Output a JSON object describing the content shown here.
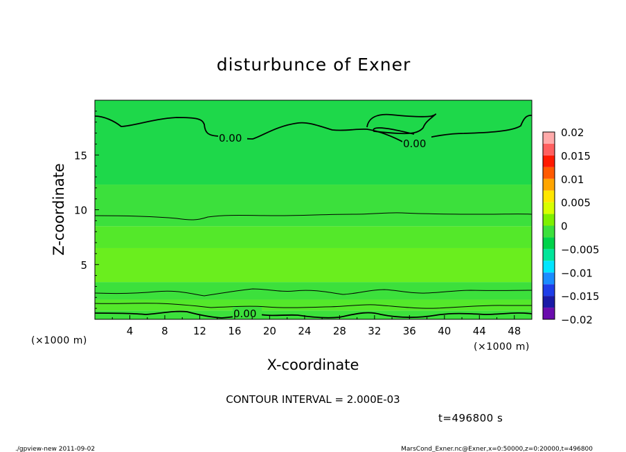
{
  "chart_data": {
    "type": "heatmap",
    "title": "disturbunce of Exner",
    "xlabel": "X-coordinate",
    "ylabel": "Z-coordinate",
    "x_unit": "(×1000 m)",
    "y_unit": "(×1000 m)",
    "xlim": [
      0,
      50
    ],
    "ylim": [
      0,
      20
    ],
    "x_ticks": [
      4,
      8,
      12,
      16,
      20,
      24,
      28,
      32,
      36,
      40,
      44,
      48
    ],
    "y_ticks": [
      5,
      10,
      15
    ],
    "colorbar": {
      "levels": [
        -0.02,
        -0.015,
        -0.01,
        -0.005,
        0,
        0.005,
        0.01,
        0.015,
        0.02
      ],
      "tick_labels": [
        "0.02",
        "0.015",
        "0.01",
        "0.005",
        "0",
        "−0.005",
        "−0.01",
        "−0.015",
        "−0.02"
      ],
      "colors": [
        "#6a0dad",
        "#1a1aa6",
        "#1e3ee8",
        "#1a8cff",
        "#00e5ff",
        "#00e59a",
        "#00d24a",
        "#3ce03c",
        "#7ef000",
        "#d8ff00",
        "#ffe600",
        "#ffa500",
        "#ff5a00",
        "#ff1a00",
        "#ff6060",
        "#ffaaaa"
      ]
    },
    "bands": [
      {
        "z_min": 0,
        "z_max": 0.8,
        "color": "#3ce03c"
      },
      {
        "z_min": 0.8,
        "z_max": 1.8,
        "color": "#54e82a"
      },
      {
        "z_min": 1.8,
        "z_max": 3.4,
        "color": "#3ce03c"
      },
      {
        "z_min": 3.4,
        "z_max": 6.5,
        "color": "#6aee1e"
      },
      {
        "z_min": 6.5,
        "z_max": 8.5,
        "color": "#54e82a"
      },
      {
        "z_min": 8.5,
        "z_max": 12.3,
        "color": "#3ce03c"
      },
      {
        "z_min": 12.3,
        "z_max": 20,
        "color": "#1ed84a"
      }
    ],
    "contour_interval": "2.000E-03",
    "contour_labels": [
      "0.00",
      "0.00",
      "0.00"
    ],
    "time": "t=496800 s"
  },
  "texts": {
    "contour_interval": "CONTOUR INTERVAL = 2.000E-03",
    "time": "t=496800 s",
    "footer_left": "./gpview-new   2011-09-02",
    "footer_right": "MarsCond_Exner.nc@Exner,x=0:50000,z=0:20000,t=496800"
  }
}
